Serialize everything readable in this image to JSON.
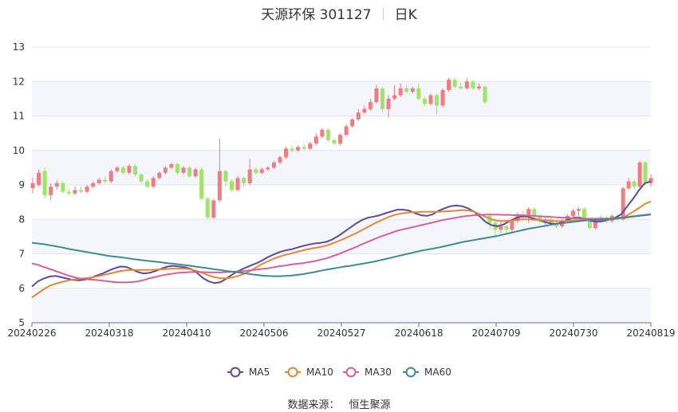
{
  "chart_data": {
    "type": "candlestick",
    "title": "天源环保 301127",
    "period_label": "日K",
    "source_label": "数据来源：",
    "source_name": "恒生聚源",
    "ylim": [
      5,
      13
    ],
    "y_ticks": [
      5,
      6,
      7,
      8,
      9,
      10,
      11,
      12,
      13
    ],
    "grid": true,
    "legend_position": "bottom-center",
    "x_ticks": [
      "20240226",
      "20240318",
      "20240410",
      "20240506",
      "20240527",
      "20240618",
      "20240709",
      "20240730",
      "20240819"
    ],
    "candles": [
      [
        8.9,
        9.05,
        8.75,
        9.2
      ],
      [
        9.0,
        9.35,
        8.95,
        9.45
      ],
      [
        9.4,
        8.7,
        8.6,
        9.5
      ],
      [
        8.7,
        8.95,
        8.55,
        9.05
      ],
      [
        8.95,
        9.05,
        8.85,
        9.15
      ],
      [
        9.05,
        8.8,
        8.75,
        9.1
      ],
      [
        8.8,
        8.75,
        8.7,
        8.9
      ],
      [
        8.75,
        8.85,
        8.7,
        8.95
      ],
      [
        8.85,
        8.8,
        8.75,
        8.95
      ],
      [
        8.8,
        8.95,
        8.75,
        9.0
      ],
      [
        8.95,
        9.05,
        8.9,
        9.1
      ],
      [
        9.05,
        9.15,
        9.0,
        9.2
      ],
      [
        9.15,
        9.1,
        9.05,
        9.25
      ],
      [
        9.1,
        9.4,
        9.05,
        9.45
      ],
      [
        9.4,
        9.5,
        9.35,
        9.55
      ],
      [
        9.5,
        9.35,
        9.3,
        9.55
      ],
      [
        9.35,
        9.55,
        9.3,
        9.6
      ],
      [
        9.55,
        9.3,
        9.25,
        9.6
      ],
      [
        9.3,
        9.1,
        9.05,
        9.35
      ],
      [
        9.1,
        8.95,
        8.9,
        9.15
      ],
      [
        8.95,
        9.2,
        8.9,
        9.25
      ],
      [
        9.2,
        9.35,
        9.15,
        9.4
      ],
      [
        9.35,
        9.5,
        9.3,
        9.55
      ],
      [
        9.5,
        9.6,
        9.45,
        9.65
      ],
      [
        9.6,
        9.35,
        9.3,
        9.65
      ],
      [
        9.35,
        9.5,
        9.3,
        9.55
      ],
      [
        9.5,
        9.25,
        9.2,
        9.55
      ],
      [
        9.25,
        9.45,
        9.2,
        9.5
      ],
      [
        9.45,
        8.6,
        8.55,
        9.5
      ],
      [
        8.6,
        8.05,
        8.0,
        8.65
      ],
      [
        8.05,
        8.55,
        8.0,
        8.6
      ],
      [
        8.55,
        9.4,
        8.5,
        10.35
      ],
      [
        9.4,
        9.1,
        8.95,
        9.45
      ],
      [
        9.1,
        8.85,
        8.8,
        9.15
      ],
      [
        8.85,
        9.2,
        8.8,
        9.25
      ],
      [
        9.2,
        9.05,
        8.95,
        9.25
      ],
      [
        9.05,
        9.45,
        9.0,
        9.75
      ],
      [
        9.45,
        9.35,
        9.3,
        9.5
      ],
      [
        9.35,
        9.45,
        9.3,
        9.5
      ],
      [
        9.45,
        9.5,
        9.4,
        9.55
      ],
      [
        9.5,
        9.65,
        9.45,
        9.7
      ],
      [
        9.65,
        9.8,
        9.6,
        9.85
      ],
      [
        9.8,
        10.05,
        9.75,
        10.1
      ],
      [
        10.05,
        10.0,
        9.95,
        10.15
      ],
      [
        10.0,
        10.1,
        9.95,
        10.15
      ],
      [
        10.1,
        10.05,
        10.0,
        10.2
      ],
      [
        10.05,
        10.2,
        10.0,
        10.25
      ],
      [
        10.2,
        10.4,
        10.15,
        10.5
      ],
      [
        10.4,
        10.6,
        10.35,
        10.65
      ],
      [
        10.6,
        10.3,
        10.25,
        10.65
      ],
      [
        10.3,
        10.2,
        10.15,
        10.35
      ],
      [
        10.2,
        10.45,
        10.15,
        10.5
      ],
      [
        10.45,
        10.7,
        10.4,
        10.75
      ],
      [
        10.7,
        10.9,
        10.65,
        10.95
      ],
      [
        10.9,
        11.1,
        10.85,
        11.2
      ],
      [
        11.1,
        11.2,
        11.05,
        11.3
      ],
      [
        11.2,
        11.4,
        11.15,
        11.5
      ],
      [
        11.4,
        11.8,
        11.35,
        11.9
      ],
      [
        11.8,
        11.2,
        11.1,
        11.85
      ],
      [
        11.2,
        11.5,
        10.95,
        11.6
      ],
      [
        11.5,
        11.6,
        11.45,
        11.9
      ],
      [
        11.6,
        11.8,
        11.55,
        11.95
      ],
      [
        11.8,
        11.7,
        11.65,
        11.9
      ],
      [
        11.7,
        11.8,
        11.65,
        11.85
      ],
      [
        11.8,
        11.5,
        11.45,
        11.95
      ],
      [
        11.5,
        11.35,
        11.3,
        11.55
      ],
      [
        11.35,
        11.6,
        11.3,
        11.65
      ],
      [
        11.6,
        11.3,
        11.05,
        11.65
      ],
      [
        11.3,
        11.75,
        11.25,
        11.8
      ],
      [
        11.75,
        12.05,
        11.7,
        12.1
      ],
      [
        12.05,
        11.85,
        11.8,
        12.1
      ],
      [
        11.85,
        11.8,
        11.75,
        11.95
      ],
      [
        11.8,
        12.0,
        11.75,
        12.1
      ],
      [
        12.0,
        11.8,
        11.75,
        12.05
      ],
      [
        11.8,
        11.85,
        11.75,
        11.95
      ],
      [
        11.85,
        11.4,
        11.35,
        11.9
      ],
      [
        8.1,
        7.9,
        7.7,
        8.2
      ],
      [
        7.9,
        7.7,
        7.5,
        7.95
      ],
      [
        7.7,
        7.8,
        7.6,
        7.95
      ],
      [
        7.8,
        7.7,
        7.6,
        7.85
      ],
      [
        7.7,
        7.95,
        7.6,
        8.0
      ],
      [
        7.95,
        8.15,
        7.9,
        8.2
      ],
      [
        8.15,
        8.1,
        8.0,
        8.25
      ],
      [
        8.1,
        8.3,
        7.9,
        8.35
      ],
      [
        8.3,
        8.1,
        8.0,
        8.35
      ],
      [
        8.1,
        7.95,
        7.9,
        8.15
      ],
      [
        7.95,
        8.0,
        7.85,
        8.05
      ],
      [
        8.0,
        7.9,
        7.85,
        8.05
      ],
      [
        7.9,
        7.8,
        7.75,
        7.95
      ],
      [
        7.8,
        7.95,
        7.75,
        8.0
      ],
      [
        7.95,
        8.1,
        7.9,
        8.15
      ],
      [
        8.1,
        8.25,
        8.05,
        8.3
      ],
      [
        8.25,
        8.3,
        8.1,
        8.35
      ],
      [
        8.3,
        8.0,
        7.95,
        8.35
      ],
      [
        8.0,
        7.75,
        7.7,
        8.05
      ],
      [
        7.75,
        7.95,
        7.7,
        8.0
      ],
      [
        7.95,
        8.05,
        7.9,
        8.1
      ],
      [
        8.05,
        7.95,
        7.9,
        8.1
      ],
      [
        7.95,
        8.1,
        7.9,
        8.15
      ],
      [
        8.1,
        8.0,
        7.95,
        8.15
      ],
      [
        8.0,
        8.9,
        7.95,
        8.95
      ],
      [
        8.9,
        9.1,
        8.85,
        9.2
      ],
      [
        9.1,
        8.95,
        8.85,
        9.15
      ],
      [
        8.95,
        9.65,
        8.9,
        9.7
      ],
      [
        9.65,
        9.05,
        9.0,
        9.7
      ],
      [
        9.05,
        9.2,
        8.95,
        9.3
      ]
    ],
    "series": [
      {
        "name": "MA5",
        "color": "#5e4a9c",
        "values": [
          6.05,
          6.2,
          6.28,
          6.34,
          6.36,
          6.32,
          6.28,
          6.24,
          6.23,
          6.25,
          6.3,
          6.37,
          6.43,
          6.51,
          6.58,
          6.63,
          6.62,
          6.55,
          6.47,
          6.43,
          6.45,
          6.5,
          6.57,
          6.63,
          6.65,
          6.63,
          6.61,
          6.56,
          6.45,
          6.3,
          6.2,
          6.15,
          6.18,
          6.28,
          6.4,
          6.5,
          6.58,
          6.65,
          6.72,
          6.8,
          6.9,
          6.98,
          7.05,
          7.1,
          7.13,
          7.18,
          7.23,
          7.27,
          7.3,
          7.32,
          7.35,
          7.42,
          7.52,
          7.64,
          7.76,
          7.88,
          7.98,
          8.05,
          8.08,
          8.12,
          8.18,
          8.23,
          8.28,
          8.28,
          8.25,
          8.18,
          8.12,
          8.1,
          8.15,
          8.25,
          8.32,
          8.38,
          8.4,
          8.38,
          8.32,
          8.22,
          8.08,
          7.92,
          7.83,
          7.8,
          7.85,
          7.95,
          8.03,
          8.08,
          8.08,
          8.03,
          7.98,
          7.92,
          7.88,
          7.87,
          7.92,
          8.0,
          8.05,
          8.05,
          8.0,
          7.95,
          7.93,
          7.95,
          8.0,
          8.05,
          8.15,
          8.38,
          8.6,
          8.85,
          9.05,
          9.1
        ]
      },
      {
        "name": "MA10",
        "color": "#e0883a",
        "values": [
          5.73,
          5.85,
          5.97,
          6.07,
          6.13,
          6.18,
          6.22,
          6.25,
          6.27,
          6.29,
          6.31,
          6.34,
          6.38,
          6.42,
          6.46,
          6.5,
          6.52,
          6.53,
          6.53,
          6.53,
          6.53,
          6.54,
          6.55,
          6.56,
          6.57,
          6.57,
          6.57,
          6.55,
          6.5,
          6.44,
          6.37,
          6.32,
          6.29,
          6.29,
          6.31,
          6.36,
          6.42,
          6.5,
          6.6,
          6.7,
          6.78,
          6.86,
          6.92,
          6.97,
          7.01,
          7.06,
          7.1,
          7.14,
          7.17,
          7.2,
          7.24,
          7.3,
          7.37,
          7.44,
          7.52,
          7.6,
          7.69,
          7.78,
          7.87,
          7.95,
          8.03,
          8.1,
          8.15,
          8.18,
          8.2,
          8.21,
          8.22,
          8.22,
          8.22,
          8.22,
          8.23,
          8.24,
          8.25,
          8.27,
          8.26,
          8.22,
          8.15,
          8.07,
          8.0,
          7.96,
          7.95,
          7.96,
          7.98,
          8.0,
          8.0,
          7.99,
          7.98,
          7.97,
          7.96,
          7.95,
          7.95,
          7.96,
          7.97,
          7.98,
          7.99,
          7.99,
          7.99,
          7.99,
          8.0,
          8.01,
          8.04,
          8.12,
          8.22,
          8.33,
          8.45,
          8.52
        ]
      },
      {
        "name": "MA30",
        "color": "#d4619e",
        "values": [
          6.72,
          6.68,
          6.62,
          6.56,
          6.5,
          6.44,
          6.38,
          6.33,
          6.29,
          6.27,
          6.25,
          6.24,
          6.22,
          6.2,
          6.18,
          6.17,
          6.17,
          6.18,
          6.2,
          6.24,
          6.29,
          6.33,
          6.37,
          6.4,
          6.43,
          6.45,
          6.46,
          6.47,
          6.47,
          6.47,
          6.46,
          6.46,
          6.46,
          6.47,
          6.48,
          6.49,
          6.5,
          6.52,
          6.54,
          6.56,
          6.58,
          6.61,
          6.64,
          6.66,
          6.69,
          6.71,
          6.73,
          6.76,
          6.79,
          6.83,
          6.87,
          6.93,
          6.99,
          7.06,
          7.13,
          7.2,
          7.28,
          7.35,
          7.42,
          7.49,
          7.55,
          7.61,
          7.67,
          7.71,
          7.75,
          7.79,
          7.83,
          7.87,
          7.91,
          7.95,
          7.99,
          8.02,
          8.05,
          8.08,
          8.1,
          8.12,
          8.13,
          8.14,
          8.14,
          8.14,
          8.13,
          8.13,
          8.12,
          8.12,
          8.11,
          8.1,
          8.09,
          8.08,
          8.07,
          8.06,
          8.05,
          8.04,
          8.03,
          8.03,
          8.02,
          8.02,
          8.02,
          8.02,
          8.02,
          8.03,
          8.05,
          8.07,
          8.09,
          8.11,
          8.13,
          8.15
        ]
      },
      {
        "name": "MA60",
        "color": "#3d8a94",
        "values": [
          7.32,
          7.3,
          7.28,
          7.25,
          7.22,
          7.19,
          7.15,
          7.12,
          7.09,
          7.06,
          7.03,
          7.0,
          6.97,
          6.94,
          6.92,
          6.9,
          6.88,
          6.85,
          6.83,
          6.81,
          6.79,
          6.77,
          6.75,
          6.73,
          6.71,
          6.69,
          6.67,
          6.65,
          6.62,
          6.6,
          6.58,
          6.55,
          6.53,
          6.5,
          6.48,
          6.46,
          6.44,
          6.41,
          6.39,
          6.37,
          6.36,
          6.35,
          6.35,
          6.36,
          6.37,
          6.39,
          6.41,
          6.44,
          6.47,
          6.51,
          6.54,
          6.57,
          6.6,
          6.63,
          6.65,
          6.68,
          6.71,
          6.74,
          6.77,
          6.81,
          6.85,
          6.89,
          6.93,
          6.97,
          7.01,
          7.05,
          7.09,
          7.12,
          7.15,
          7.18,
          7.22,
          7.26,
          7.3,
          7.34,
          7.37,
          7.4,
          7.43,
          7.46,
          7.49,
          7.52,
          7.56,
          7.6,
          7.64,
          7.68,
          7.72,
          7.75,
          7.78,
          7.81,
          7.84,
          7.87,
          7.89,
          7.91,
          7.93,
          7.95,
          7.97,
          7.98,
          7.99,
          8.0,
          8.01,
          8.02,
          8.04,
          8.06,
          8.08,
          8.1,
          8.12,
          8.14
        ]
      }
    ],
    "colors": {
      "up": "#f07b80",
      "down": "#9fe466",
      "grid": "#dfe3ee",
      "band": "#f5f6fb",
      "axis": "#333333"
    }
  }
}
